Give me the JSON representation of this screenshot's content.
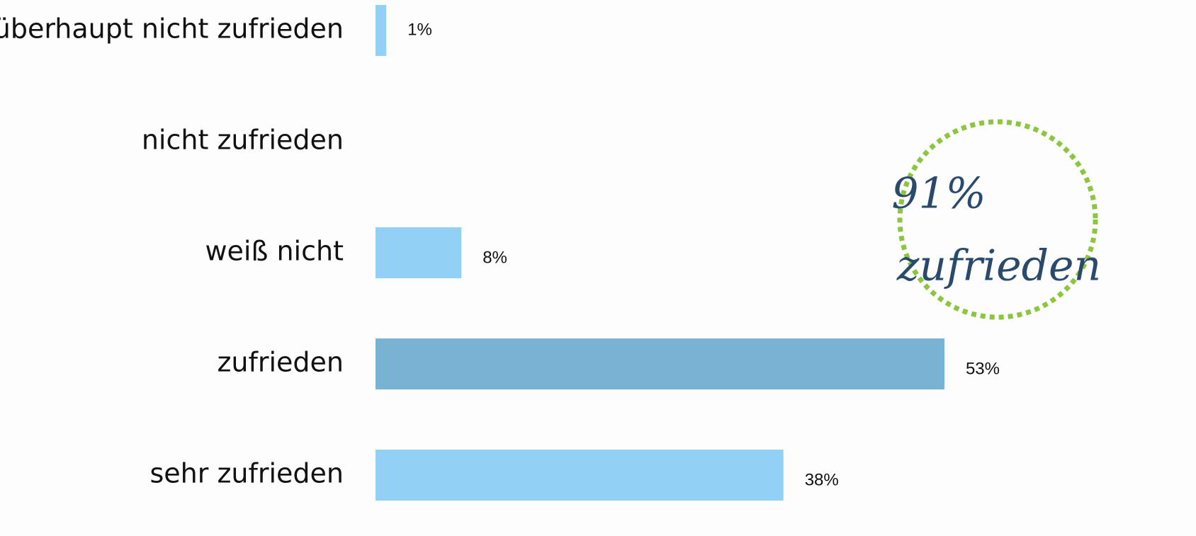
{
  "chart_data": {
    "type": "barh",
    "categories": [
      "überhaupt nicht zufrieden",
      "nicht zufrieden",
      "weiß nicht",
      "zufrieden",
      "sehr zufrieden"
    ],
    "values": [
      1,
      null,
      8,
      53,
      38
    ],
    "value_labels": [
      "1%",
      null,
      "8%",
      "53%",
      "38%"
    ],
    "colors": [
      "#92d1f5",
      "#92d1f5",
      "#92d1f5",
      "#78b3d3",
      "#92d1f5"
    ],
    "annotation": [
      "91%",
      "zufrieden"
    ],
    "annotation_color": "#2a4a6b",
    "circle_color": "#8cc63f"
  }
}
